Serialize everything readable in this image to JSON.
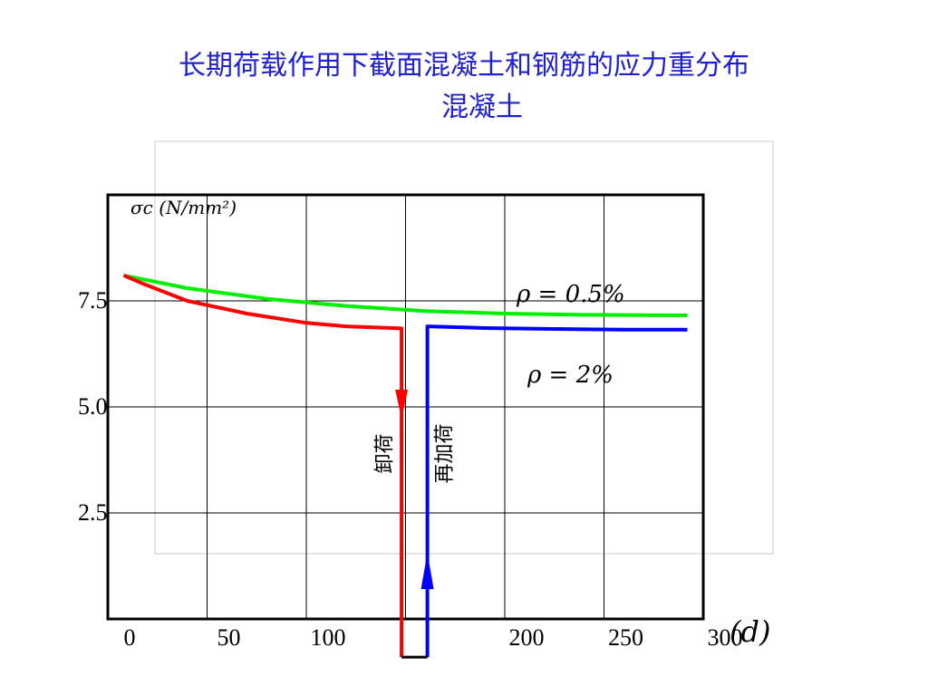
{
  "title": {
    "line1": "长期荷载作用下截面混凝土和钢筋的应力重分布",
    "line2": "混凝土"
  },
  "chart_data": {
    "type": "line",
    "title": "长期荷载作用下截面混凝土和钢筋的应力重分布",
    "subtitle": "混凝土",
    "xlabel": "(d)",
    "ylabel": "σc (N/mm²)",
    "xlim": [
      0,
      300
    ],
    "ylim": [
      0,
      10
    ],
    "x_ticks": [
      {
        "value": 0,
        "label": "0"
      },
      {
        "value": 50,
        "label": "50"
      },
      {
        "value": 100,
        "label": "100"
      },
      {
        "value": 200,
        "label": "200"
      },
      {
        "value": 250,
        "label": "250"
      },
      {
        "value": 300,
        "label": "300"
      }
    ],
    "y_ticks": [
      {
        "value": 2.5,
        "label": "2.5"
      },
      {
        "value": 5.0,
        "label": "5.0"
      },
      {
        "value": 7.5,
        "label": "7.5"
      }
    ],
    "grid": true,
    "series": [
      {
        "name": "ρ = 0.5%",
        "color": "#00ee00",
        "x": [
          8,
          40,
          80,
          120,
          160,
          200,
          240,
          280,
          292
        ],
        "y": [
          8.1,
          7.8,
          7.55,
          7.38,
          7.26,
          7.2,
          7.17,
          7.16,
          7.16
        ]
      },
      {
        "name": "ρ = 2%",
        "color": "#ff0000",
        "x": [
          8,
          18,
          40,
          70,
          100,
          120,
          148,
          148
        ],
        "y": [
          8.1,
          7.9,
          7.5,
          7.2,
          6.98,
          6.9,
          6.85,
          -0.9
        ]
      },
      {
        "name": "ρ = 2% (reload)",
        "color": "#0000ff",
        "x": [
          161,
          161,
          175,
          190,
          220,
          260,
          292
        ],
        "y": [
          -0.9,
          6.9,
          6.88,
          6.86,
          6.84,
          6.82,
          6.82
        ]
      }
    ],
    "annotations": [
      {
        "text": "卸荷",
        "x": 140,
        "y": 3.9
      },
      {
        "text": "再加荷",
        "x": 170,
        "y": 3.9
      }
    ]
  }
}
